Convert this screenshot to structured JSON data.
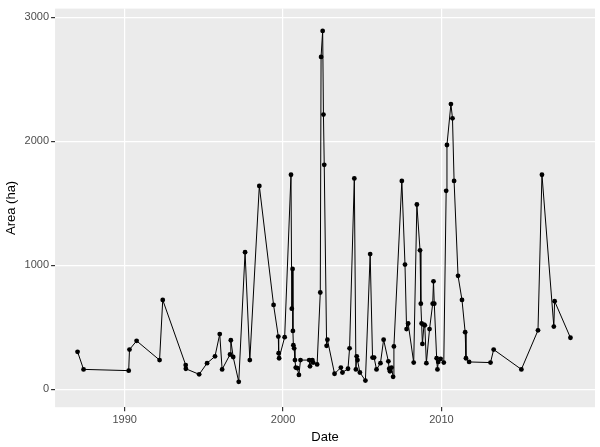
{
  "chart_data": {
    "type": "line",
    "x_label": "Date",
    "y_label": "Area (ha)",
    "x": [
      1987.02,
      1987.4,
      1990.25,
      1990.3,
      1990.75,
      1992.2,
      1992.4,
      1993.85,
      1993.86,
      1994.7,
      1995.2,
      1995.7,
      1996.0,
      1996.15,
      1996.65,
      1996.7,
      1996.85,
      1997.2,
      1997.6,
      1997.9,
      1998.5,
      1999.4,
      1999.7,
      1999.72,
      1999.75,
      2000.1,
      2000.5,
      2000.55,
      2000.6,
      2000.62,
      2000.65,
      2000.7,
      2000.75,
      2000.8,
      2000.9,
      2001.0,
      2001.1,
      2001.65,
      2001.7,
      2001.85,
      2001.9,
      2002.15,
      2002.35,
      2002.4,
      2002.5,
      2002.55,
      2002.6,
      2002.75,
      2002.8,
      2003.25,
      2003.65,
      2003.75,
      2004.1,
      2004.2,
      2004.5,
      2004.6,
      2004.65,
      2004.7,
      2004.85,
      2005.2,
      2005.5,
      2005.65,
      2005.75,
      2005.9,
      2006.15,
      2006.35,
      2006.65,
      2006.7,
      2006.75,
      2006.85,
      2006.95,
      2007.0,
      2007.5,
      2007.7,
      2007.8,
      2007.9,
      2008.25,
      2008.45,
      2008.65,
      2008.7,
      2008.75,
      2008.8,
      2008.9,
      2008.95,
      2009.05,
      2009.25,
      2009.45,
      2009.5,
      2009.55,
      2009.7,
      2009.75,
      2009.8,
      2009.95,
      2010.15,
      2010.3,
      2010.35,
      2010.6,
      2010.7,
      2010.8,
      2011.05,
      2011.3,
      2011.5,
      2011.55,
      2011.75,
      2013.1,
      2013.3,
      2015.05,
      2016.1,
      2016.35,
      2017.1,
      2017.15,
      2018.15
    ],
    "values": [
      302,
      160,
      150,
      320,
      390,
      235,
      720,
      195,
      165,
      120,
      210,
      265,
      445,
      160,
      280,
      395,
      260,
      60,
      1105,
      235,
      1640,
      680,
      425,
      290,
      250,
      420,
      1730,
      650,
      970,
      470,
      355,
      330,
      235,
      175,
      170,
      115,
      235,
      235,
      185,
      235,
      215,
      200,
      780,
      2680,
      2890,
      2215,
      1810,
      350,
      400,
      125,
      175,
      135,
      165,
      330,
      1700,
      160,
      265,
      235,
      135,
      70,
      1090,
      255,
      255,
      160,
      210,
      400,
      225,
      165,
      145,
      175,
      100,
      345,
      1680,
      1005,
      485,
      530,
      215,
      1490,
      1120,
      690,
      530,
      365,
      520,
      515,
      210,
      485,
      690,
      870,
      690,
      250,
      160,
      220,
      245,
      215,
      1600,
      1970,
      2300,
      2185,
      1680,
      915,
      720,
      460,
      250,
      220,
      215,
      320,
      160,
      475,
      1730,
      505,
      710,
      415
    ],
    "color": "#000000",
    "marker": "circle",
    "line_style": "solid",
    "xlim": [
      1985.6,
      2019.7
    ],
    "xticks": [
      1990,
      2000,
      2010
    ],
    "ylim": [
      -145,
      3070
    ],
    "yticks": [
      0,
      1000,
      2000,
      3000
    ],
    "grid": true
  }
}
